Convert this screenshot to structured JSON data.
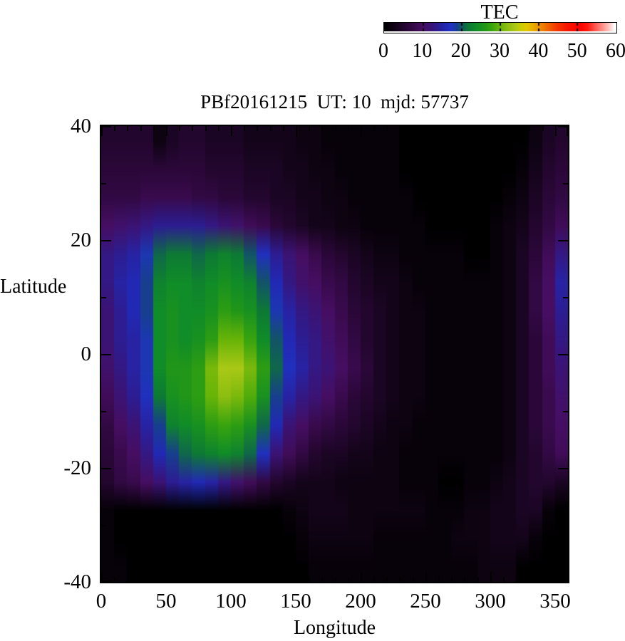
{
  "title": "PBf20161215  UT: 10  mjd: 57737",
  "colorbar": {
    "label": "TEC",
    "ticks": [
      0,
      10,
      20,
      30,
      40,
      50,
      60
    ],
    "min": 0,
    "max": 60
  },
  "axes": {
    "xlabel": "Longitude",
    "ylabel": "Latitude",
    "xticks": [
      0,
      50,
      100,
      150,
      200,
      250,
      300,
      350
    ],
    "yticks": [
      40,
      20,
      0,
      -20,
      -40
    ],
    "xrange": [
      0,
      360
    ],
    "yrange": [
      -40,
      40
    ],
    "x_minor_step": 10,
    "y_minor_step": 10
  },
  "chart_data": {
    "type": "heatmap",
    "title": "PBf20161215  UT: 10  mjd: 57737",
    "xlabel": "Longitude",
    "ylabel": "Latitude",
    "value_label": "TEC",
    "value_range": [
      0,
      60
    ],
    "grid": {
      "lon_start": 5,
      "lon_step": 10,
      "n_lon": 36,
      "lat_start": 37.5,
      "lat_step": -5,
      "n_lat": 16
    },
    "values": [
      [
        5,
        5,
        5,
        5,
        2,
        4,
        5,
        5,
        4,
        4,
        4,
        3,
        3,
        3,
        3,
        2,
        2,
        1,
        1,
        1,
        1,
        1,
        1,
        0,
        0,
        0,
        0,
        0,
        0,
        0,
        0,
        0,
        0,
        2,
        4,
        5
      ],
      [
        6,
        6,
        6,
        6,
        6,
        6,
        6,
        6,
        5,
        5,
        5,
        4,
        4,
        4,
        3,
        3,
        2,
        2,
        1,
        1,
        1,
        1,
        1,
        0,
        0,
        0,
        0,
        0,
        0,
        0,
        0,
        0,
        1,
        3,
        5,
        6
      ],
      [
        7,
        7,
        7,
        8,
        8,
        8,
        8,
        7,
        7,
        6,
        6,
        5,
        5,
        4,
        4,
        3,
        3,
        2,
        2,
        1,
        1,
        1,
        1,
        1,
        0,
        0,
        0,
        0,
        0,
        0,
        0,
        1,
        2,
        4,
        6,
        7
      ],
      [
        10,
        11,
        12,
        13,
        14,
        14,
        14,
        14,
        13,
        12,
        11,
        9,
        8,
        6,
        5,
        4,
        3,
        3,
        2,
        2,
        1,
        1,
        1,
        1,
        1,
        0,
        0,
        0,
        0,
        0,
        1,
        2,
        3,
        5,
        7,
        9
      ],
      [
        13,
        14,
        15,
        18,
        21,
        22,
        22,
        21,
        22,
        23,
        22,
        20,
        17,
        14,
        12,
        10,
        8,
        6,
        5,
        4,
        3,
        2,
        2,
        1,
        1,
        1,
        1,
        1,
        0,
        0,
        1,
        2,
        4,
        6,
        9,
        13
      ],
      [
        13,
        15,
        16,
        19,
        23,
        24,
        24,
        23,
        24,
        25,
        24,
        23,
        20,
        16,
        13,
        11,
        10,
        8,
        7,
        5,
        4,
        3,
        3,
        2,
        1,
        1,
        1,
        1,
        1,
        1,
        1,
        2,
        4,
        7,
        10,
        15
      ],
      [
        12,
        14,
        16,
        19,
        24,
        25,
        24,
        24,
        25,
        27,
        26,
        25,
        22,
        18,
        15,
        13,
        12,
        10,
        8,
        6,
        5,
        4,
        3,
        2,
        2,
        1,
        1,
        1,
        1,
        1,
        1,
        2,
        4,
        7,
        10,
        14
      ],
      [
        12,
        14,
        15,
        18,
        24,
        25,
        24,
        25,
        27,
        30,
        30,
        28,
        24,
        20,
        16,
        14,
        13,
        11,
        9,
        7,
        5,
        4,
        3,
        2,
        2,
        1,
        1,
        1,
        1,
        1,
        1,
        2,
        4,
        6,
        9,
        13
      ],
      [
        11,
        13,
        15,
        18,
        24,
        26,
        26,
        27,
        31,
        34,
        34,
        31,
        27,
        21,
        17,
        15,
        13,
        12,
        10,
        8,
        6,
        4,
        3,
        2,
        2,
        1,
        1,
        1,
        1,
        1,
        1,
        2,
        4,
        6,
        9,
        12
      ],
      [
        9,
        12,
        14,
        17,
        22,
        25,
        26,
        27,
        30,
        32,
        31,
        29,
        25,
        19,
        15,
        13,
        12,
        10,
        8,
        6,
        5,
        4,
        3,
        2,
        2,
        1,
        1,
        1,
        1,
        1,
        1,
        2,
        4,
        6,
        8,
        11
      ],
      [
        7,
        10,
        12,
        15,
        19,
        23,
        24,
        25,
        27,
        28,
        27,
        25,
        21,
        16,
        12,
        10,
        8,
        7,
        6,
        5,
        4,
        3,
        2,
        2,
        1,
        1,
        1,
        1,
        1,
        1,
        1,
        2,
        4,
        6,
        8,
        10
      ],
      [
        6,
        8,
        10,
        13,
        16,
        19,
        21,
        22,
        23,
        24,
        23,
        21,
        17,
        12,
        9,
        7,
        5,
        4,
        4,
        3,
        3,
        2,
        2,
        1,
        1,
        1,
        1,
        1,
        1,
        1,
        1,
        2,
        4,
        5,
        7,
        9
      ],
      [
        5,
        7,
        8,
        10,
        12,
        14,
        15,
        16,
        15,
        13,
        11,
        9,
        7,
        5,
        4,
        3,
        3,
        3,
        2,
        2,
        2,
        2,
        2,
        1,
        1,
        1,
        0,
        0,
        1,
        1,
        2,
        3,
        4,
        5,
        5,
        4
      ],
      [
        1,
        0,
        0,
        0,
        0,
        0,
        0,
        0,
        0,
        0,
        0,
        0,
        0,
        0,
        1,
        2,
        3,
        3,
        3,
        2,
        2,
        2,
        2,
        2,
        2,
        1,
        1,
        1,
        2,
        2,
        3,
        3,
        4,
        4,
        1,
        0
      ],
      [
        1,
        0,
        0,
        0,
        0,
        0,
        0,
        0,
        0,
        0,
        0,
        0,
        0,
        0,
        0,
        1,
        2,
        2,
        2,
        2,
        2,
        1,
        1,
        1,
        1,
        1,
        1,
        2,
        2,
        2,
        3,
        3,
        3,
        1,
        0,
        0
      ],
      [
        1,
        1,
        0,
        0,
        0,
        0,
        0,
        0,
        0,
        0,
        0,
        0,
        0,
        0,
        0,
        0,
        1,
        1,
        1,
        1,
        1,
        1,
        1,
        1,
        1,
        1,
        1,
        1,
        1,
        2,
        2,
        2,
        0,
        0,
        0,
        0
      ]
    ],
    "colormap": [
      [
        0,
        "#000000"
      ],
      [
        3,
        "#14041a"
      ],
      [
        6,
        "#2a0738"
      ],
      [
        9,
        "#400c58"
      ],
      [
        10,
        "#460e62"
      ],
      [
        12,
        "#3b1374"
      ],
      [
        14,
        "#2c1d92"
      ],
      [
        16,
        "#2129b4"
      ],
      [
        17.5,
        "#1f33c2"
      ],
      [
        19,
        "#173f8e"
      ],
      [
        20.5,
        "#105f55"
      ],
      [
        22,
        "#0d7a34"
      ],
      [
        24,
        "#108c28"
      ],
      [
        26,
        "#219618"
      ],
      [
        28,
        "#38a40e"
      ],
      [
        30,
        "#68b408"
      ],
      [
        32,
        "#8cbe10"
      ],
      [
        34,
        "#aac816"
      ],
      [
        35.5,
        "#c8ce04"
      ],
      [
        37,
        "#e2c800"
      ],
      [
        39,
        "#eaa800"
      ],
      [
        41,
        "#ee8400"
      ],
      [
        43,
        "#f15c00"
      ],
      [
        45,
        "#f43600"
      ],
      [
        48,
        "#f81400"
      ],
      [
        51,
        "#fc0200"
      ],
      [
        53,
        "#ff1c10"
      ],
      [
        55,
        "#ff5a50"
      ],
      [
        57,
        "#ff968e"
      ],
      [
        58.5,
        "#ffc4c0"
      ],
      [
        60,
        "#ffffff"
      ]
    ],
    "legend_position": "top-right",
    "grid_lines": false
  }
}
